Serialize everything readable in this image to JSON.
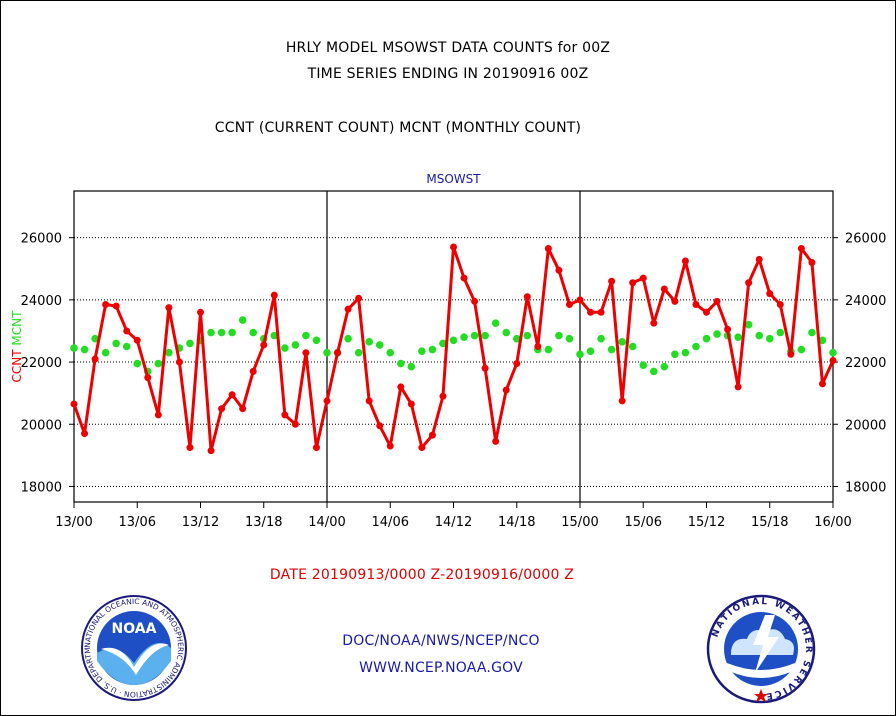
{
  "header": {
    "title1": "HRLY MODEL MSOWST DATA COUNTS for 00Z",
    "title2": "TIME SERIES ENDING IN 20190916 00Z",
    "subtitle": "CCNT (CURRENT COUNT) MCNT (MONTHLY COUNT)"
  },
  "footer": {
    "date_range": "DATE 20190913/0000 Z-20190916/0000 Z",
    "org_line": "DOC/NOAA/NWS/NCEP/NCO",
    "url": "WWW.NCEP.NOAA.GOV"
  },
  "logos": {
    "noaa_text": "NOAA",
    "noaa_ring": "NATIONAL OCEANIC AND ATMOSPHERIC ADMINISTRATION · U.S. DEPARTMENT OF COMMERCE",
    "nws_ring": "NATIONAL WEATHER SERVICE"
  },
  "colors": {
    "ccnt": "#ee0000",
    "mcnt": "#22dd22",
    "panel_label": "#1a1aa8"
  },
  "chart_data": {
    "type": "line",
    "title": "MSOWST",
    "ylabel_left": [
      "CCNT",
      "MCNT"
    ],
    "ylim": [
      17500,
      27500
    ],
    "yticks": [
      18000,
      20000,
      22000,
      24000,
      26000
    ],
    "x_range_hours": [
      0,
      72
    ],
    "xticks": [
      "13/00",
      "13/06",
      "13/12",
      "13/18",
      "14/00",
      "14/06",
      "14/12",
      "14/18",
      "15/00",
      "15/06",
      "15/12",
      "15/18",
      "16/00"
    ],
    "grid": true,
    "series": [
      {
        "name": "CCNT",
        "color": "#ee0000",
        "values": [
          20650,
          19700,
          22100,
          23850,
          23800,
          23000,
          22700,
          21500,
          20300,
          23750,
          22000,
          19250,
          23600,
          19150,
          20500,
          20950,
          20500,
          21700,
          22550,
          24150,
          20300,
          20000,
          22300,
          19250,
          20750,
          22300,
          23700,
          24050,
          20750,
          19950,
          19300,
          21200,
          20650,
          19250,
          19650,
          20900,
          25700,
          24700,
          23950,
          21800,
          19450,
          21100,
          21950,
          24100,
          22500,
          25650,
          24950,
          23850,
          24000,
          23600,
          23600,
          24600,
          20750,
          24550,
          24700,
          23250,
          24350,
          23950,
          25250,
          23850,
          23600,
          23950,
          23050,
          21200,
          24550,
          25300,
          24200,
          23850,
          22250,
          25650,
          25200,
          21300,
          22050
        ]
      },
      {
        "name": "MCNT",
        "color": "#22dd22",
        "values": [
          22450,
          22400,
          22750,
          22300,
          22600,
          22500,
          21950,
          21700,
          21950,
          22300,
          22450,
          22600,
          22700,
          22950,
          22950,
          22950,
          23350,
          22950,
          22750,
          22850,
          22450,
          22550,
          22850,
          22700,
          22300,
          22300,
          22750,
          22300,
          22650,
          22550,
          22300,
          21950,
          21850,
          22350,
          22400,
          22600,
          22700,
          22800,
          22850,
          22850,
          23250,
          22950,
          22750,
          22850,
          22400,
          22400,
          22850,
          22750,
          22250,
          22350,
          22750,
          22400,
          22650,
          22500,
          21900,
          21700,
          21850,
          22250,
          22300,
          22500,
          22750,
          22900,
          22850,
          22800,
          23200,
          22850,
          22750,
          22950,
          22350,
          22400,
          22950,
          22700,
          22300
        ]
      }
    ]
  }
}
